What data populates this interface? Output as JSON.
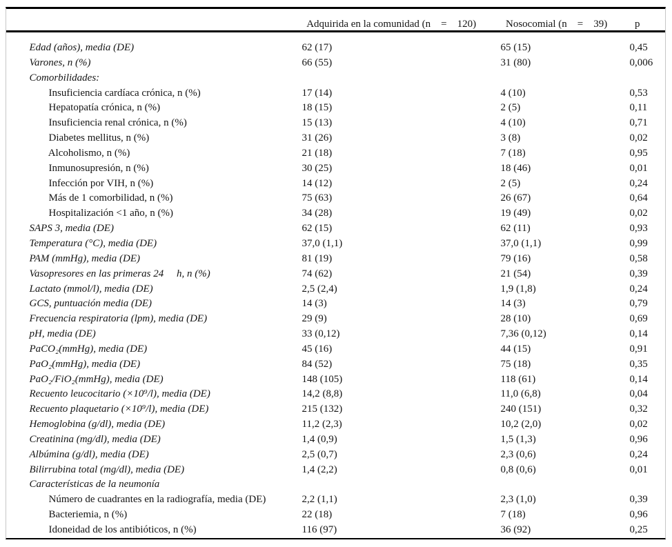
{
  "table": {
    "header": {
      "col_label": "",
      "community": "Adquirida en la comunidad (n    =    120)",
      "nosocomial": "Nosocomial (n    =    39)",
      "p": "p"
    },
    "rows": [
      {
        "label": "Edad (años), media (DE)",
        "indent": false,
        "community": "62 (17)",
        "nosocomial": "65 (15)",
        "p": "0,45"
      },
      {
        "label": "Varones, n (%)",
        "indent": false,
        "community": "66 (55)",
        "nosocomial": "31 (80)",
        "p": "0,006"
      },
      {
        "label": "Comorbilidades:",
        "indent": false,
        "community": "",
        "nosocomial": "",
        "p": ""
      },
      {
        "label": "Insuficiencia cardíaca crónica, n (%)",
        "indent": true,
        "community": "17 (14)",
        "nosocomial": "4 (10)",
        "p": "0,53"
      },
      {
        "label": "Hepatopatía crónica, n (%)",
        "indent": true,
        "community": "18 (15)",
        "nosocomial": "2 (5)",
        "p": "0,11"
      },
      {
        "label": "Insuficiencia renal crónica, n (%)",
        "indent": true,
        "community": "15 (13)",
        "nosocomial": "4 (10)",
        "p": "0,71"
      },
      {
        "label": "Diabetes mellitus, n (%)",
        "indent": true,
        "community": "31 (26)",
        "nosocomial": "3 (8)",
        "p": "0,02"
      },
      {
        "label": "Alcoholismo, n (%)",
        "indent": true,
        "community": "21 (18)",
        "nosocomial": "7 (18)",
        "p": "0,95"
      },
      {
        "label": "Inmunosupresión, n (%)",
        "indent": true,
        "community": "30 (25)",
        "nosocomial": "18 (46)",
        "p": "0,01"
      },
      {
        "label": "Infección por VIH, n (%)",
        "indent": true,
        "community": "14 (12)",
        "nosocomial": "2 (5)",
        "p": "0,24"
      },
      {
        "label": "Más de 1 comorbilidad, n (%)",
        "indent": true,
        "community": "75 (63)",
        "nosocomial": "26 (67)",
        "p": "0,64"
      },
      {
        "label": "Hospitalización <1 año, n (%)",
        "indent": true,
        "community": "34 (28)",
        "nosocomial": "19 (49)",
        "p": "0,02"
      },
      {
        "label": "SAPS 3, media (DE)",
        "indent": false,
        "community": "62 (15)",
        "nosocomial": "62 (11)",
        "p": "0,93"
      },
      {
        "label": "Temperatura (°C), media (DE)",
        "indent": false,
        "community": "37,0 (1,1)",
        "nosocomial": "37,0 (1,1)",
        "p": "0,99"
      },
      {
        "label": "PAM (mmHg), media (DE)",
        "indent": false,
        "community": "81 (19)",
        "nosocomial": "79 (16)",
        "p": "0,58"
      },
      {
        "label": "Vasopresores en las primeras 24     h, n (%)",
        "indent": false,
        "community": "74 (62)",
        "nosocomial": "21 (54)",
        "p": "0,39"
      },
      {
        "label": "Lactato (mmol/l), media (DE)",
        "indent": false,
        "community": "2,5 (2,4)",
        "nosocomial": "1,9 (1,8)",
        "p": "0,24"
      },
      {
        "label": "GCS, puntuación media (DE)",
        "indent": false,
        "community": "14 (3)",
        "nosocomial": "14 (3)",
        "p": "0,79"
      },
      {
        "label": "Frecuencia respiratoria (lpm), media (DE)",
        "indent": false,
        "community": "29 (9)",
        "nosocomial": "28 (10)",
        "p": "0,69"
      },
      {
        "label": "pH, media (DE)",
        "indent": false,
        "community": "33 (0,12)",
        "nosocomial": "7,36 (0,12)",
        "p": "0,14"
      },
      {
        "label": "PaCO₂(mmHg), media (DE)",
        "indent": false,
        "community": "45 (16)",
        "nosocomial": "44 (15)",
        "p": "0,91"
      },
      {
        "label": "PaO₂(mmHg), media (DE)",
        "indent": false,
        "community": "84 (52)",
        "nosocomial": "75 (18)",
        "p": "0,35"
      },
      {
        "label": "PaO₂/FiO₂(mmHg), media (DE)",
        "indent": false,
        "community": "148 (105)",
        "nosocomial": "118 (61)",
        "p": "0,14"
      },
      {
        "label": "Recuento leucocitario (×10⁹/l), media (DE)",
        "indent": false,
        "community": "14,2 (8,8)",
        "nosocomial": "11,0 (6,8)",
        "p": "0,04"
      },
      {
        "label": "Recuento plaquetario (×10⁹/l), media (DE)",
        "indent": false,
        "community": "215 (132)",
        "nosocomial": "240 (151)",
        "p": "0,32"
      },
      {
        "label": "Hemoglobina (g/dl), media (DE)",
        "indent": false,
        "community": "11,2 (2,3)",
        "nosocomial": "10,2 (2,0)",
        "p": "0,02"
      },
      {
        "label": "Creatinina (mg/dl), media (DE)",
        "indent": false,
        "community": "1,4 (0,9)",
        "nosocomial": "1,5 (1,3)",
        "p": "0,96"
      },
      {
        "label": "Albúmina (g/dl), media (DE)",
        "indent": false,
        "community": "2,5 (0,7)",
        "nosocomial": "2,3 (0,6)",
        "p": "0,24"
      },
      {
        "label": "Bilirrubina total (mg/dl), media (DE)",
        "indent": false,
        "community": "1,4 (2,2)",
        "nosocomial": "0,8 (0,6)",
        "p": "0,01"
      },
      {
        "label": "Características de la neumonía",
        "indent": false,
        "community": "",
        "nosocomial": "",
        "p": ""
      },
      {
        "label": "Número de cuadrantes en la radiografía, media (DE)",
        "indent": true,
        "community": "2,2 (1,1)",
        "nosocomial": "2,3 (1,0)",
        "p": "0,39"
      },
      {
        "label": "Bacteriemia, n (%)",
        "indent": true,
        "community": "22 (18)",
        "nosocomial": "7 (18)",
        "p": "0,96"
      },
      {
        "label": "Idoneidad de los antibióticos, n (%)",
        "indent": true,
        "community": "116 (97)",
        "nosocomial": "36 (92)",
        "p": "0,25"
      }
    ]
  },
  "colors": {
    "background": "#ffffff",
    "text": "#141414",
    "horizontal_rule": "#000000",
    "side_frame_line": "#c6c6c6"
  }
}
